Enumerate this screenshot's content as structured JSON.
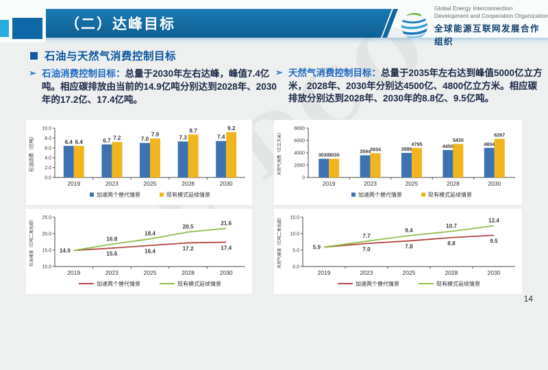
{
  "header": {
    "title": "（二）达峰目标",
    "logo": {
      "line1": "Global Energy Interconnection",
      "line2": "Development and Cooperation Organization",
      "line3": "全球能源互联网发展合作组织"
    }
  },
  "section_heading": "石油与天然气消费控制目标",
  "bullets": [
    {
      "label": "石油消费控制目标：",
      "text": "总量于2030年左右达峰，峰值7.4亿吨。相应碳排放由当前的14.9亿吨分别达到2028年、2030年的17.2亿、17.4亿吨。"
    },
    {
      "label": "天然气消费控制目标：",
      "text": "总量于2035年左右达到峰值5000亿立方米，2028年、2030年分别达4500亿、4800亿立方米。相应碳排放分别达到2028年、2030年的8.8亿、9.5亿吨。"
    }
  ],
  "watermark": "GEIDCO",
  "page_number": "14",
  "colors": {
    "header_blue": "#11699f",
    "accent_light_blue": "#29abe2",
    "heading_blue": "#0c56a2",
    "bullet_label_blue": "#1d68c2",
    "bar_blue": "#3e73b3",
    "bar_yellow": "#f2b51d",
    "line_red": "#b0433f",
    "line_green": "#8cbf4b"
  },
  "chart_data": [
    {
      "type": "bar",
      "ylabel": "石油消费（亿吨）",
      "categories": [
        "2019",
        "2023",
        "2025",
        "2028",
        "2030"
      ],
      "series": [
        {
          "name": "加速两个替代情景",
          "color": "#3e73b3",
          "values": [
            6.4,
            6.7,
            7.0,
            7.3,
            7.4
          ]
        },
        {
          "name": "现有模式延续情景",
          "color": "#f2b51d",
          "values": [
            6.4,
            7.2,
            7.9,
            8.7,
            9.2
          ]
        }
      ],
      "ylim": [
        0,
        10
      ],
      "ystep": 2,
      "tick_decimals": 1,
      "label_decimals": 1,
      "grid": false,
      "legend_position": "bottom"
    },
    {
      "type": "bar",
      "ylabel": "天然气消费（亿立方米）",
      "categories": [
        "2019",
        "2023",
        "2025",
        "2028",
        "2030"
      ],
      "series": [
        {
          "name": "加速两个替代情景",
          "color": "#3e73b3",
          "values": [
            3030,
            3594,
            3986,
            4450,
            4804
          ]
        },
        {
          "name": "现有模式延续情景",
          "color": "#f2b51d",
          "values": [
            3030,
            3934,
            4795,
            5430,
            6267
          ]
        }
      ],
      "ylim": [
        0,
        8000
      ],
      "ystep": 2000,
      "tick_decimals": 0,
      "label_decimals": 0,
      "grid": false,
      "legend_position": "bottom"
    },
    {
      "type": "line",
      "ylabel": "石油排放（亿吨二氧化碳）",
      "categories": [
        "2019",
        "2023",
        "2025",
        "2028",
        "2030"
      ],
      "series": [
        {
          "name": "加速两个替代情景",
          "color": "#b0433f",
          "values": [
            14.9,
            15.6,
            16.4,
            17.2,
            17.4
          ]
        },
        {
          "name": "现有模式延续情景",
          "color": "#8cbf4b",
          "values": [
            14.9,
            16.8,
            18.4,
            20.5,
            21.6
          ]
        }
      ],
      "ylim": [
        10,
        25
      ],
      "ystep": 5,
      "tick_decimals": 1,
      "label_decimals": 1,
      "grid": false,
      "legend_position": "bottom"
    },
    {
      "type": "line",
      "ylabel": "天然气排放（亿吨二氧化碳）",
      "categories": [
        "2019",
        "2023",
        "2025",
        "2028",
        "2030"
      ],
      "series": [
        {
          "name": "加速两个替代情景",
          "color": "#b0433f",
          "values": [
            5.9,
            7.0,
            7.8,
            8.8,
            9.5
          ]
        },
        {
          "name": "现有模式延续情景",
          "color": "#8cbf4b",
          "values": [
            5.9,
            7.7,
            9.4,
            10.7,
            12.4
          ]
        }
      ],
      "ylim": [
        0,
        15
      ],
      "ystep": 5,
      "tick_decimals": 1,
      "label_decimals": 1,
      "grid": false,
      "legend_position": "bottom"
    }
  ]
}
